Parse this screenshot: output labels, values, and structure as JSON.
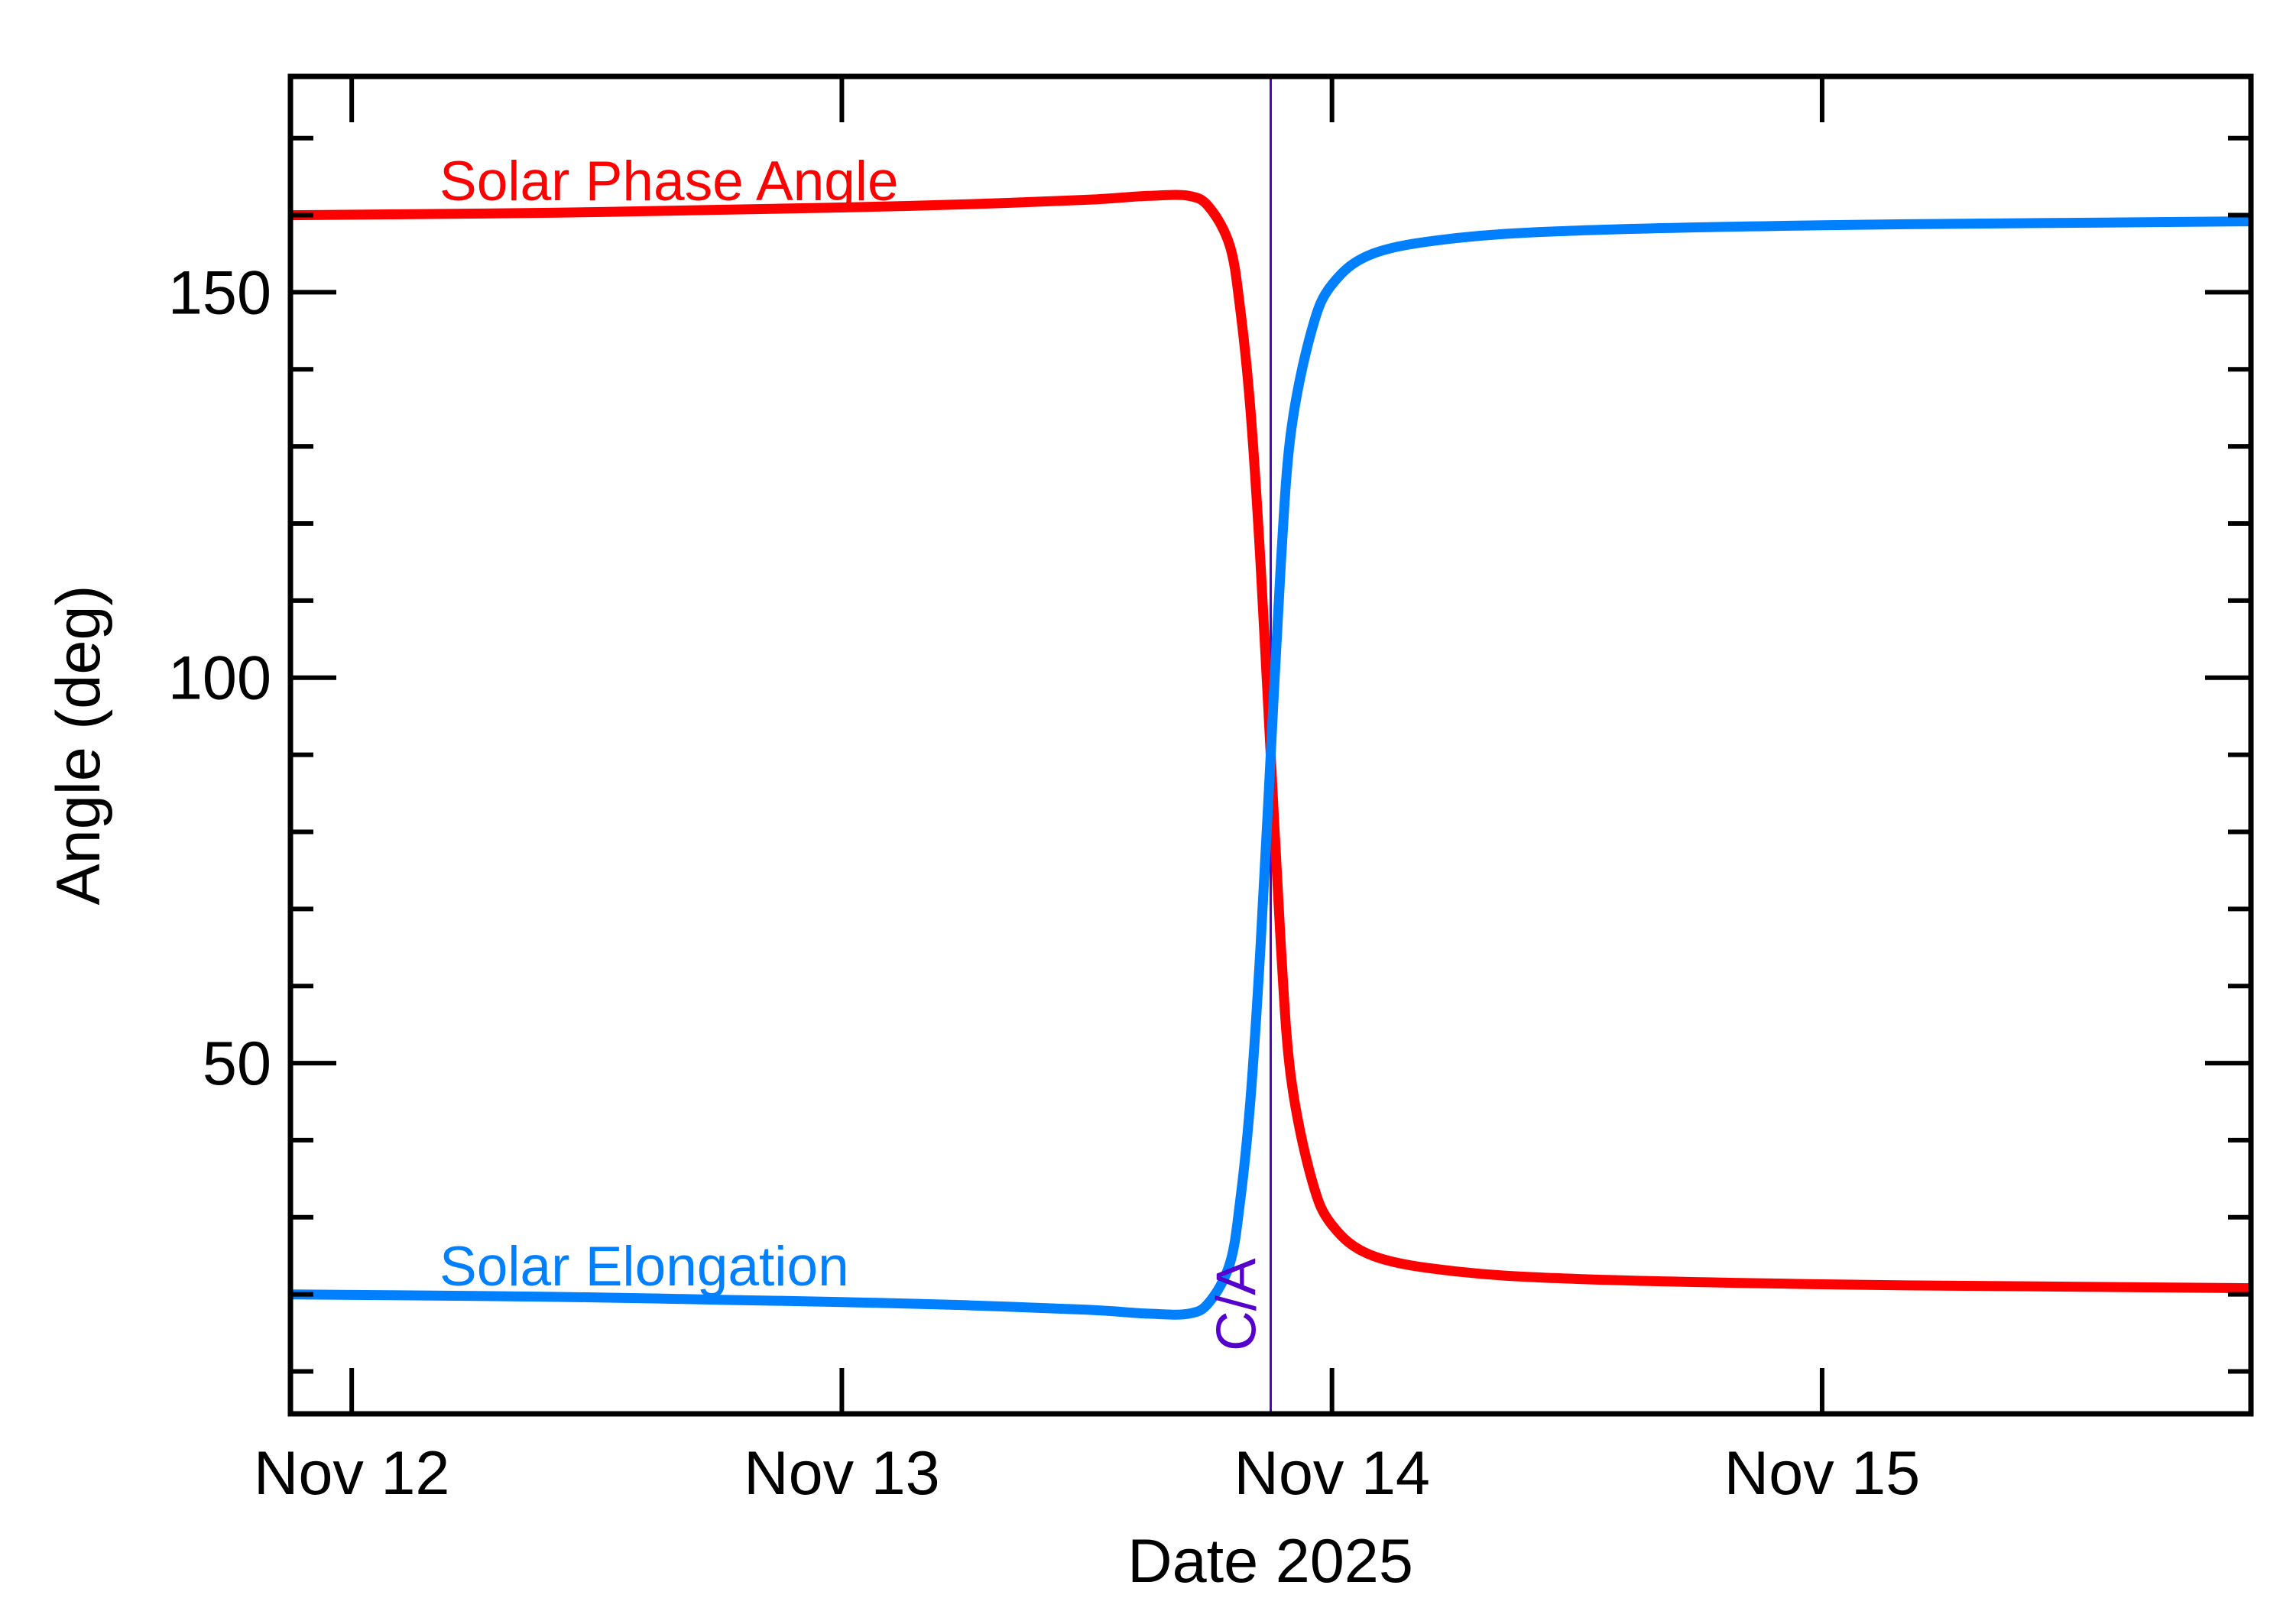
{
  "chart_data": {
    "type": "line",
    "title": "",
    "xlabel": "Date 2025",
    "ylabel": "Angle (deg)",
    "x_unit": "days",
    "xlim": [
      "2025-11-11 21:00",
      "2025-11-15 21:00"
    ],
    "ylim": [
      4.5,
      178
    ],
    "x_ticks": [
      {
        "label": "Nov 12",
        "value": "2025-11-12 00:00"
      },
      {
        "label": "Nov 13",
        "value": "2025-11-13 00:00"
      },
      {
        "label": "Nov 14",
        "value": "2025-11-14 00:00"
      },
      {
        "label": "Nov 15",
        "value": "2025-11-15 00:00"
      }
    ],
    "y_ticks": [
      {
        "label": "50",
        "value": 50
      },
      {
        "label": "100",
        "value": 100
      },
      {
        "label": "150",
        "value": 150
      }
    ],
    "grid": false,
    "closest_approach": {
      "label": "C/A",
      "x": "2025-11-13 21:00",
      "color": "#5500CC"
    },
    "series": [
      {
        "name": "Solar Phase Angle",
        "color": "#FF0000",
        "x": [
          "2025-11-11 21:00",
          "2025-11-12 06:00",
          "2025-11-12 12:00",
          "2025-11-12 18:00",
          "2025-11-13 00:00",
          "2025-11-13 06:00",
          "2025-11-13 12:00",
          "2025-11-13 15:00",
          "2025-11-13 17:00",
          "2025-11-13 18:00",
          "2025-11-13 19:00",
          "2025-11-13 19:30",
          "2025-11-13 20:00",
          "2025-11-13 20:30",
          "2025-11-13 21:00",
          "2025-11-13 21:30",
          "2025-11-13 22:00",
          "2025-11-13 23:00",
          "2025-11-14 00:00",
          "2025-11-14 02:00",
          "2025-11-14 06:00",
          "2025-11-14 12:00",
          "2025-11-15 00:00",
          "2025-11-15 12:00",
          "2025-11-15 21:00"
        ],
        "y": [
          160,
          160.2,
          160.4,
          160.7,
          161,
          161.4,
          162,
          162.5,
          162.5,
          161,
          156,
          148,
          135,
          115,
          90,
          65,
          48,
          35,
          29,
          25,
          23,
          22,
          21.3,
          21,
          20.8
        ]
      },
      {
        "name": "Solar Elongation",
        "color": "#0080FF",
        "x": [
          "2025-11-11 21:00",
          "2025-11-12 06:00",
          "2025-11-12 12:00",
          "2025-11-12 18:00",
          "2025-11-13 00:00",
          "2025-11-13 06:00",
          "2025-11-13 12:00",
          "2025-11-13 15:00",
          "2025-11-13 17:00",
          "2025-11-13 18:00",
          "2025-11-13 19:00",
          "2025-11-13 19:30",
          "2025-11-13 20:00",
          "2025-11-13 20:30",
          "2025-11-13 21:00",
          "2025-11-13 21:30",
          "2025-11-13 22:00",
          "2025-11-13 23:00",
          "2025-11-14 00:00",
          "2025-11-14 02:00",
          "2025-11-14 06:00",
          "2025-11-14 12:00",
          "2025-11-15 00:00",
          "2025-11-15 12:00",
          "2025-11-15 21:00"
        ],
        "y": [
          20,
          19.8,
          19.6,
          19.3,
          19,
          18.6,
          18,
          17.5,
          17.5,
          19,
          24,
          32,
          45,
          65,
          90,
          115,
          132,
          145,
          151,
          155,
          157,
          158,
          158.7,
          159,
          159.2
        ]
      }
    ]
  }
}
